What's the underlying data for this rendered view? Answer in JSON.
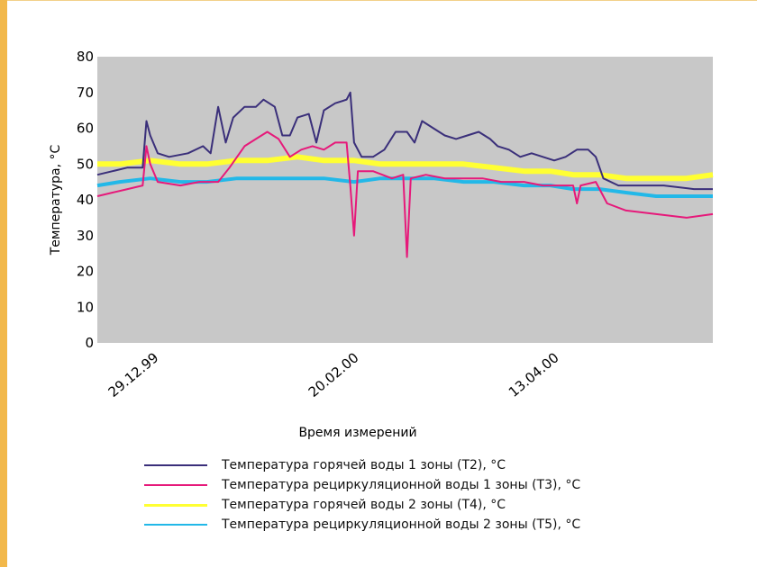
{
  "chart_data": {
    "type": "line",
    "title": "",
    "xlabel": "Время измерений",
    "ylabel": "Температура, °С",
    "ylim": [
      0,
      80
    ],
    "yticks": [
      "0",
      "10",
      "20",
      "30",
      "40",
      "50",
      "60",
      "70",
      "80"
    ],
    "xticks": [
      "29.12.99",
      "20.02.00",
      "13.04.00"
    ],
    "x_range": [
      "1999-12-14",
      "2000-05-25"
    ],
    "grid": false,
    "background": "#c8c8c8",
    "legend_position": "bottom",
    "series": [
      {
        "name": "Температура горячей воды 1 зоны (Т2), °С",
        "color": "#3a2f7a",
        "width": 2,
        "points": [
          [
            "1999-12-14",
            47
          ],
          [
            "1999-12-18",
            48
          ],
          [
            "1999-12-22",
            49
          ],
          [
            "1999-12-26",
            49
          ],
          [
            "1999-12-27",
            62
          ],
          [
            "1999-12-28",
            58
          ],
          [
            "1999-12-30",
            53
          ],
          [
            "2000-01-02",
            52
          ],
          [
            "2000-01-07",
            53
          ],
          [
            "2000-01-11",
            55
          ],
          [
            "2000-01-13",
            53
          ],
          [
            "2000-01-15",
            66
          ],
          [
            "2000-01-17",
            56
          ],
          [
            "2000-01-19",
            63
          ],
          [
            "2000-01-22",
            66
          ],
          [
            "2000-01-25",
            66
          ],
          [
            "2000-01-27",
            68
          ],
          [
            "2000-01-30",
            66
          ],
          [
            "2000-02-01",
            58
          ],
          [
            "2000-02-03",
            58
          ],
          [
            "2000-02-05",
            63
          ],
          [
            "2000-02-08",
            64
          ],
          [
            "2000-02-10",
            56
          ],
          [
            "2000-02-12",
            65
          ],
          [
            "2000-02-15",
            67
          ],
          [
            "2000-02-18",
            68
          ],
          [
            "2000-02-19",
            70
          ],
          [
            "2000-02-20",
            56
          ],
          [
            "2000-02-22",
            52
          ],
          [
            "2000-02-25",
            52
          ],
          [
            "2000-02-28",
            54
          ],
          [
            "2000-03-02",
            59
          ],
          [
            "2000-03-05",
            59
          ],
          [
            "2000-03-07",
            56
          ],
          [
            "2000-03-09",
            62
          ],
          [
            "2000-03-12",
            60
          ],
          [
            "2000-03-15",
            58
          ],
          [
            "2000-03-18",
            57
          ],
          [
            "2000-03-21",
            58
          ],
          [
            "2000-03-24",
            59
          ],
          [
            "2000-03-27",
            57
          ],
          [
            "2000-03-29",
            55
          ],
          [
            "2000-04-01",
            54
          ],
          [
            "2000-04-04",
            52
          ],
          [
            "2000-04-07",
            53
          ],
          [
            "2000-04-10",
            52
          ],
          [
            "2000-04-13",
            51
          ],
          [
            "2000-04-16",
            52
          ],
          [
            "2000-04-19",
            54
          ],
          [
            "2000-04-22",
            54
          ],
          [
            "2000-04-24",
            52
          ],
          [
            "2000-04-26",
            46
          ],
          [
            "2000-04-30",
            44
          ],
          [
            "2000-05-05",
            44
          ],
          [
            "2000-05-12",
            44
          ],
          [
            "2000-05-20",
            43
          ],
          [
            "2000-05-25",
            43
          ]
        ]
      },
      {
        "name": "Температура рециркуляционной воды 1 зоны (Т3), °С",
        "color": "#e6197a",
        "width": 2,
        "points": [
          [
            "1999-12-14",
            41
          ],
          [
            "1999-12-18",
            42
          ],
          [
            "1999-12-22",
            43
          ],
          [
            "1999-12-26",
            44
          ],
          [
            "1999-12-27",
            55
          ],
          [
            "1999-12-28",
            50
          ],
          [
            "1999-12-30",
            45
          ],
          [
            "2000-01-05",
            44
          ],
          [
            "2000-01-10",
            45
          ],
          [
            "2000-01-15",
            45
          ],
          [
            "2000-01-18",
            49
          ],
          [
            "2000-01-22",
            55
          ],
          [
            "2000-01-25",
            57
          ],
          [
            "2000-01-28",
            59
          ],
          [
            "2000-01-31",
            57
          ],
          [
            "2000-02-03",
            52
          ],
          [
            "2000-02-06",
            54
          ],
          [
            "2000-02-09",
            55
          ],
          [
            "2000-02-12",
            54
          ],
          [
            "2000-02-15",
            56
          ],
          [
            "2000-02-18",
            56
          ],
          [
            "2000-02-19",
            44
          ],
          [
            "2000-02-20",
            30
          ],
          [
            "2000-02-21",
            48
          ],
          [
            "2000-02-25",
            48
          ],
          [
            "2000-03-01",
            46
          ],
          [
            "2000-03-04",
            47
          ],
          [
            "2000-03-05",
            24
          ],
          [
            "2000-03-06",
            46
          ],
          [
            "2000-03-10",
            47
          ],
          [
            "2000-03-15",
            46
          ],
          [
            "2000-03-20",
            46
          ],
          [
            "2000-03-25",
            46
          ],
          [
            "2000-03-30",
            45
          ],
          [
            "2000-04-05",
            45
          ],
          [
            "2000-04-10",
            44
          ],
          [
            "2000-04-15",
            44
          ],
          [
            "2000-04-18",
            44
          ],
          [
            "2000-04-19",
            39
          ],
          [
            "2000-04-20",
            44
          ],
          [
            "2000-04-24",
            45
          ],
          [
            "2000-04-27",
            39
          ],
          [
            "2000-05-02",
            37
          ],
          [
            "2000-05-10",
            36
          ],
          [
            "2000-05-18",
            35
          ],
          [
            "2000-05-25",
            36
          ]
        ]
      },
      {
        "name": "Температура горячей воды 2 зоны (Т4), °С",
        "color": "#ffff33",
        "width": 6,
        "points": [
          [
            "1999-12-14",
            50
          ],
          [
            "1999-12-20",
            50
          ],
          [
            "1999-12-28",
            51
          ],
          [
            "2000-01-05",
            50
          ],
          [
            "2000-01-12",
            50
          ],
          [
            "2000-01-20",
            51
          ],
          [
            "2000-01-28",
            51
          ],
          [
            "2000-02-05",
            52
          ],
          [
            "2000-02-12",
            51
          ],
          [
            "2000-02-20",
            51
          ],
          [
            "2000-02-27",
            50
          ],
          [
            "2000-03-05",
            50
          ],
          [
            "2000-03-12",
            50
          ],
          [
            "2000-03-20",
            50
          ],
          [
            "2000-03-28",
            49
          ],
          [
            "2000-04-05",
            48
          ],
          [
            "2000-04-12",
            48
          ],
          [
            "2000-04-18",
            47
          ],
          [
            "2000-04-25",
            47
          ],
          [
            "2000-05-02",
            46
          ],
          [
            "2000-05-10",
            46
          ],
          [
            "2000-05-18",
            46
          ],
          [
            "2000-05-25",
            47
          ]
        ]
      },
      {
        "name": "Температура рециркуляционной воды 2 зоны (Т5), °С",
        "color": "#22b8e8",
        "width": 4,
        "points": [
          [
            "1999-12-14",
            44
          ],
          [
            "1999-12-20",
            45
          ],
          [
            "1999-12-28",
            46
          ],
          [
            "2000-01-05",
            45
          ],
          [
            "2000-01-12",
            45
          ],
          [
            "2000-01-20",
            46
          ],
          [
            "2000-01-28",
            46
          ],
          [
            "2000-02-05",
            46
          ],
          [
            "2000-02-12",
            46
          ],
          [
            "2000-02-20",
            45
          ],
          [
            "2000-02-27",
            46
          ],
          [
            "2000-03-05",
            46
          ],
          [
            "2000-03-12",
            46
          ],
          [
            "2000-03-20",
            45
          ],
          [
            "2000-03-28",
            45
          ],
          [
            "2000-04-05",
            44
          ],
          [
            "2000-04-12",
            44
          ],
          [
            "2000-04-18",
            43
          ],
          [
            "2000-04-25",
            43
          ],
          [
            "2000-05-02",
            42
          ],
          [
            "2000-05-10",
            41
          ],
          [
            "2000-05-18",
            41
          ],
          [
            "2000-05-25",
            41
          ]
        ]
      }
    ]
  }
}
